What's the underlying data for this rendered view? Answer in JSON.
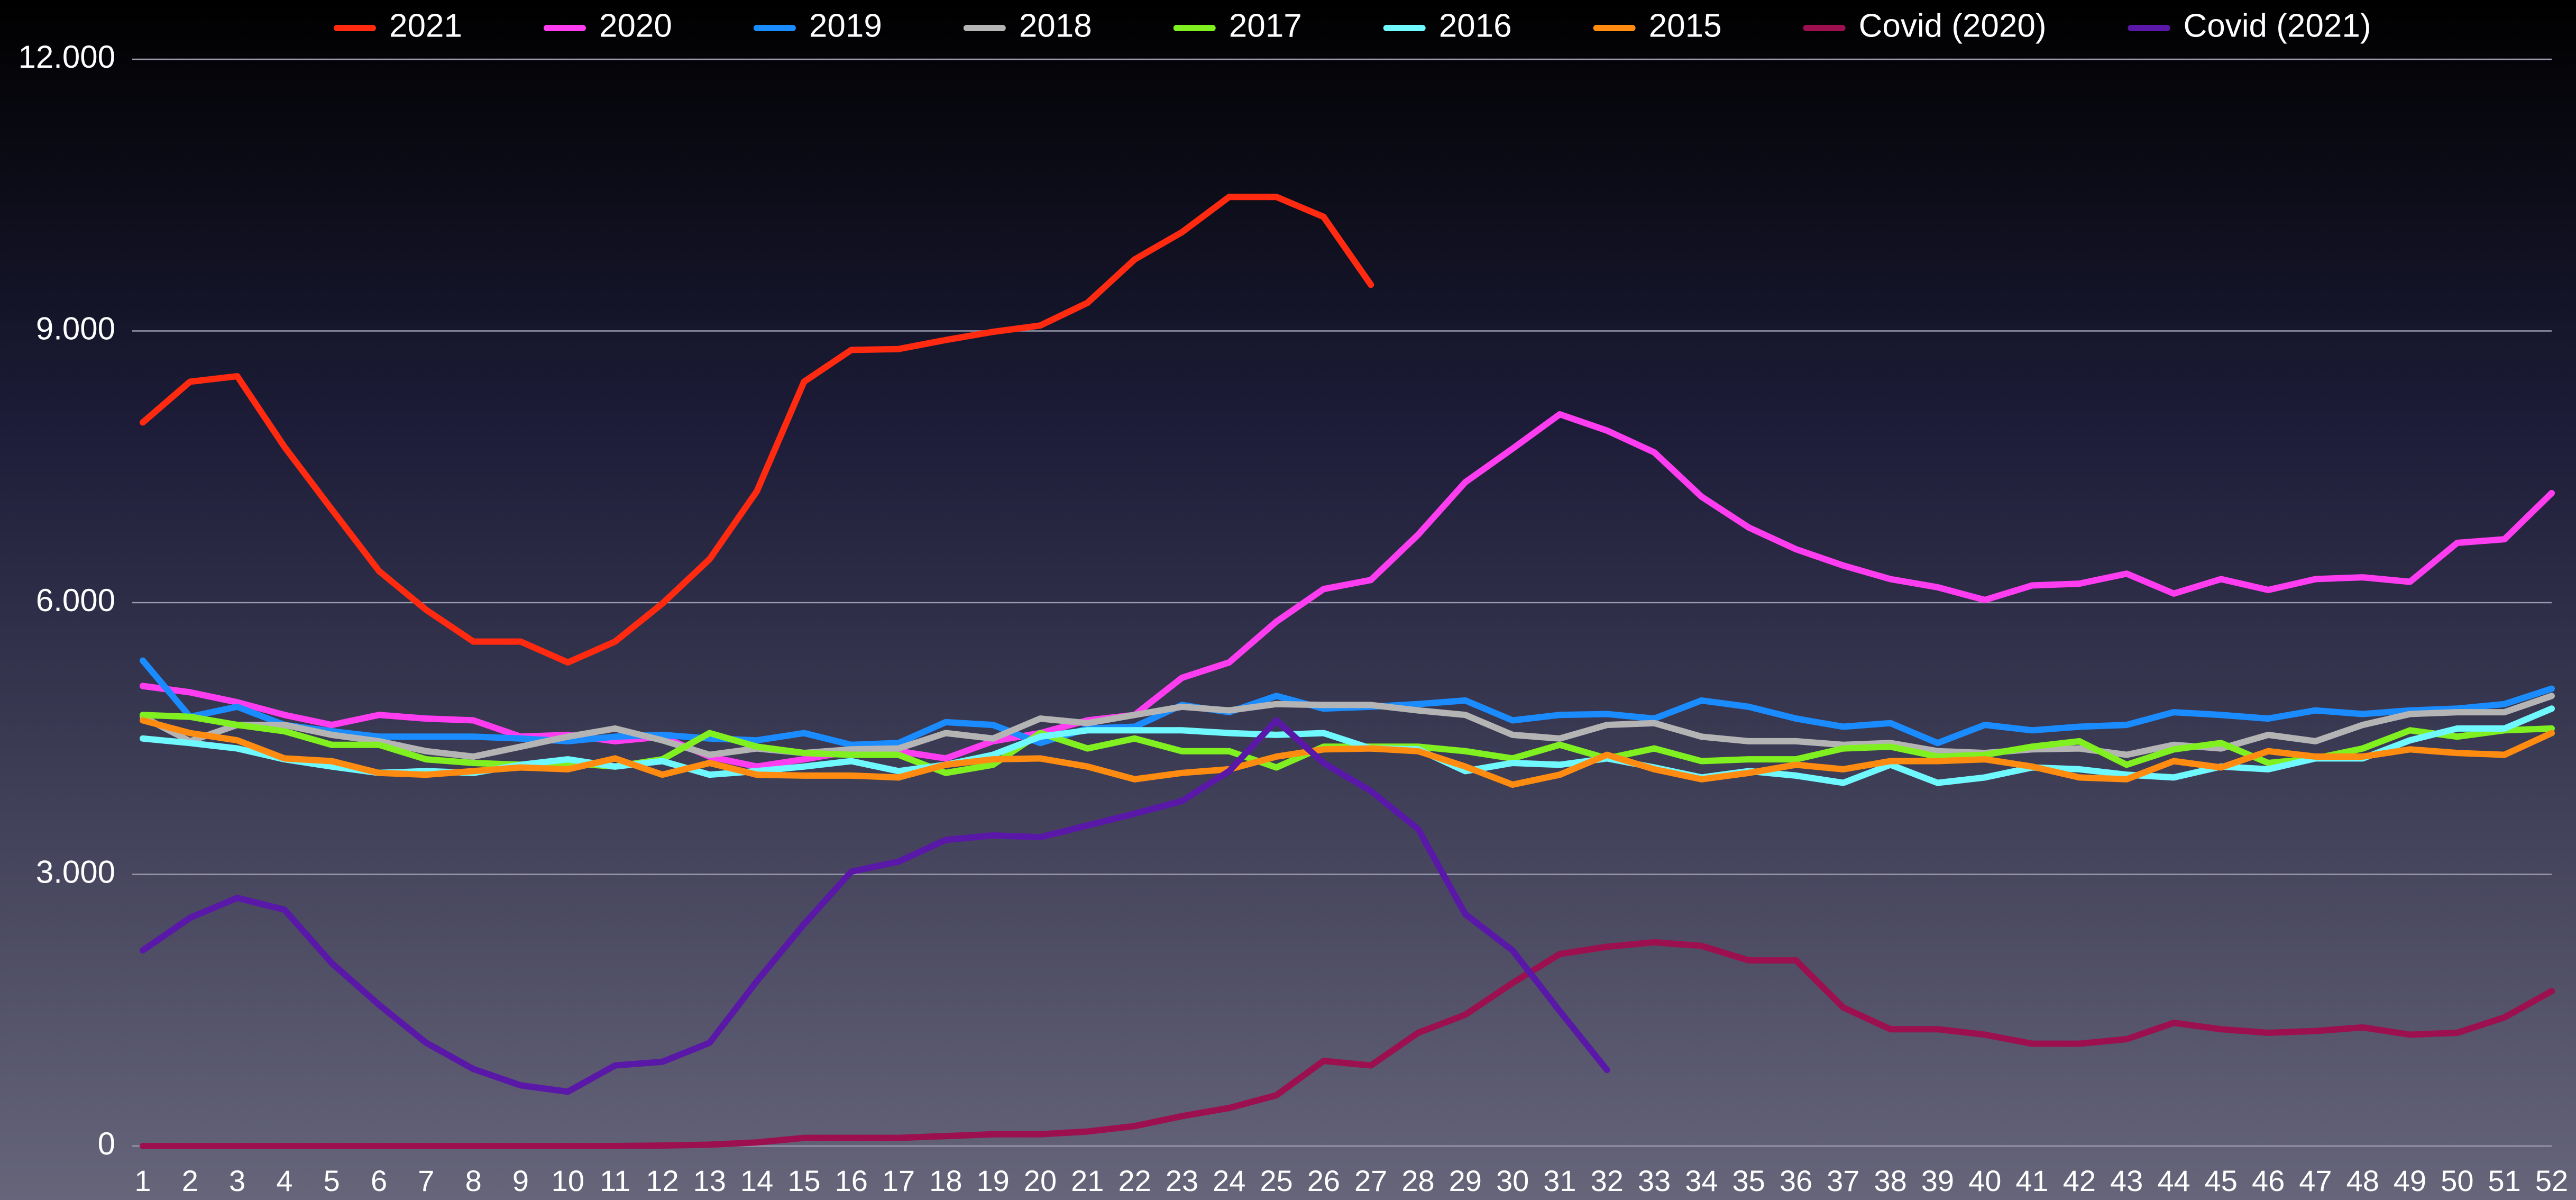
{
  "chart_data": {
    "type": "line",
    "categories": [
      1,
      2,
      3,
      4,
      5,
      6,
      7,
      8,
      9,
      10,
      11,
      12,
      13,
      14,
      15,
      16,
      17,
      18,
      19,
      20,
      21,
      22,
      23,
      24,
      25,
      26,
      27,
      28,
      29,
      30,
      31,
      32,
      33,
      34,
      35,
      36,
      37,
      38,
      39,
      40,
      41,
      42,
      43,
      44,
      45,
      46,
      47,
      48,
      49,
      50,
      51,
      52
    ],
    "ylim": [
      0,
      12000
    ],
    "yticks": [
      0,
      {
        "value": 3000,
        "label": "3.000"
      },
      {
        "value": 6000,
        "label": "6.000"
      },
      {
        "value": 9000,
        "label": "9.000"
      },
      {
        "value": 12000,
        "label": "12.000"
      }
    ],
    "grid": true,
    "legend": "top",
    "series": [
      {
        "name": "2021",
        "color": "#ff2a10",
        "values": [
          7990,
          8440,
          8500,
          7720,
          7030,
          6350,
          5920,
          5570,
          5570,
          5340,
          5570,
          5990,
          6480,
          7230,
          8440,
          8790,
          8800,
          8900,
          8990,
          9060,
          9310,
          9790,
          10090,
          10480,
          10480,
          10260,
          9510,
          null,
          null,
          null,
          null,
          null,
          null,
          null,
          null,
          null,
          null,
          null,
          null,
          null,
          null,
          null,
          null,
          null,
          null,
          null,
          null,
          null,
          null,
          null,
          null,
          null
        ]
      },
      {
        "name": "2020",
        "color": "#ff3df0",
        "values": [
          5080,
          5010,
          4900,
          4760,
          4650,
          4760,
          4720,
          4700,
          4520,
          4540,
          4470,
          4520,
          4300,
          4190,
          4270,
          4360,
          4360,
          4280,
          4470,
          4560,
          4700,
          4760,
          5170,
          5340,
          5790,
          6150,
          6250,
          6750,
          7330,
          7700,
          8080,
          7900,
          7660,
          7170,
          6830,
          6590,
          6410,
          6260,
          6170,
          6030,
          6190,
          6210,
          6320,
          6100,
          6260,
          6140,
          6260,
          6280,
          6230,
          6660,
          6700,
          7210
        ]
      },
      {
        "name": "2019",
        "color": "#1a8cff",
        "values": [
          5360,
          4740,
          4850,
          4650,
          4580,
          4520,
          4520,
          4520,
          4500,
          4470,
          4520,
          4540,
          4500,
          4480,
          4560,
          4430,
          4450,
          4680,
          4650,
          4450,
          4610,
          4630,
          4870,
          4790,
          4970,
          4830,
          4850,
          4880,
          4920,
          4700,
          4760,
          4770,
          4720,
          4920,
          4850,
          4720,
          4630,
          4670,
          4450,
          4650,
          4590,
          4630,
          4650,
          4790,
          4760,
          4720,
          4810,
          4770,
          4810,
          4830,
          4880,
          5050
        ]
      },
      {
        "name": "2018",
        "color": "#b4b4b4",
        "values": [
          4740,
          4470,
          4650,
          4650,
          4540,
          4470,
          4360,
          4300,
          4410,
          4520,
          4610,
          4480,
          4320,
          4390,
          4340,
          4380,
          4390,
          4560,
          4500,
          4720,
          4670,
          4760,
          4850,
          4810,
          4880,
          4870,
          4870,
          4810,
          4760,
          4540,
          4500,
          4650,
          4670,
          4520,
          4470,
          4470,
          4430,
          4450,
          4360,
          4340,
          4380,
          4390,
          4320,
          4430,
          4390,
          4540,
          4470,
          4650,
          4770,
          4790,
          4790,
          4970
        ]
      },
      {
        "name": "2017",
        "color": "#80f020",
        "values": [
          4760,
          4740,
          4650,
          4580,
          4430,
          4430,
          4270,
          4230,
          4210,
          4230,
          4190,
          4270,
          4560,
          4410,
          4340,
          4320,
          4320,
          4120,
          4210,
          4560,
          4390,
          4500,
          4360,
          4360,
          4180,
          4410,
          4410,
          4410,
          4360,
          4280,
          4430,
          4280,
          4390,
          4250,
          4270,
          4270,
          4390,
          4410,
          4300,
          4320,
          4410,
          4470,
          4210,
          4380,
          4450,
          4230,
          4280,
          4390,
          4590,
          4520,
          4590,
          4610
        ]
      },
      {
        "name": "2016",
        "color": "#70f8ff",
        "values": [
          4500,
          4450,
          4390,
          4270,
          4190,
          4120,
          4140,
          4120,
          4210,
          4270,
          4190,
          4250,
          4100,
          4140,
          4190,
          4250,
          4140,
          4210,
          4320,
          4520,
          4590,
          4590,
          4590,
          4560,
          4540,
          4560,
          4390,
          4380,
          4140,
          4230,
          4210,
          4280,
          4180,
          4070,
          4140,
          4090,
          4010,
          4210,
          4010,
          4070,
          4180,
          4160,
          4100,
          4070,
          4190,
          4160,
          4280,
          4280,
          4480,
          4610,
          4610,
          4830
        ]
      },
      {
        "name": "2015",
        "color": "#ff8c10",
        "values": [
          4700,
          4560,
          4480,
          4280,
          4250,
          4120,
          4100,
          4140,
          4180,
          4160,
          4280,
          4100,
          4230,
          4100,
          4090,
          4090,
          4070,
          4210,
          4270,
          4280,
          4190,
          4050,
          4120,
          4160,
          4300,
          4380,
          4390,
          4360,
          4190,
          3990,
          4100,
          4320,
          4160,
          4050,
          4120,
          4210,
          4160,
          4250,
          4250,
          4270,
          4190,
          4070,
          4050,
          4250,
          4180,
          4360,
          4300,
          4300,
          4380,
          4340,
          4320,
          4560
        ]
      },
      {
        "name": "Covid (2020)",
        "color": "#9c1050",
        "values": [
          0,
          0,
          0,
          0,
          0,
          0,
          0,
          0,
          0,
          0,
          0,
          5,
          15,
          40,
          90,
          90,
          90,
          110,
          130,
          130,
          160,
          220,
          330,
          420,
          560,
          940,
          890,
          1250,
          1450,
          1800,
          2120,
          2200,
          2250,
          2210,
          2050,
          2050,
          1530,
          1290,
          1290,
          1230,
          1130,
          1130,
          1180,
          1360,
          1290,
          1250,
          1270,
          1310,
          1230,
          1250,
          1420,
          1710
        ]
      },
      {
        "name": "Covid (2021)",
        "color": "#5a18a8",
        "values": [
          2160,
          2520,
          2740,
          2610,
          2020,
          1560,
          1140,
          850,
          670,
          600,
          890,
          930,
          1140,
          1820,
          2450,
          3030,
          3140,
          3380,
          3430,
          3410,
          3540,
          3670,
          3810,
          4140,
          4700,
          4230,
          3920,
          3500,
          2560,
          2160,
          1490,
          840,
          null,
          null,
          null,
          null,
          null,
          null,
          null,
          null,
          null,
          null,
          null,
          null,
          null,
          null,
          null,
          null,
          null,
          null,
          null,
          null
        ]
      }
    ]
  }
}
